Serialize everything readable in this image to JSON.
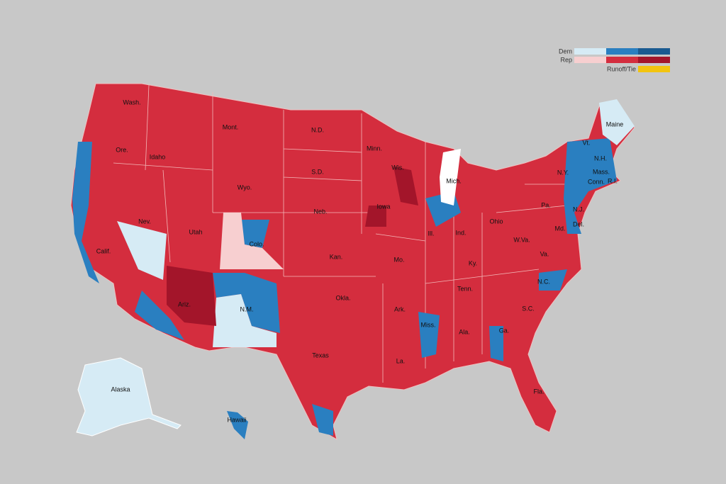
{
  "legend": {
    "rows": [
      "Dem",
      "Rep",
      "Runoff/Tie"
    ]
  },
  "states": [
    "Wash.",
    "Ore.",
    "Idaho",
    "Mont.",
    "N.D.",
    "S.D.",
    "Wyo.",
    "Neb.",
    "Nev.",
    "Utah",
    "Colo.",
    "Calif.",
    "Ariz.",
    "N.M.",
    "Kan.",
    "Okla.",
    "Texas",
    "Minn.",
    "Iowa",
    "Mo.",
    "Ark.",
    "La.",
    "Wis.",
    "Ill.",
    "Mich.",
    "Ind.",
    "Ohio",
    "Ky.",
    "Tenn.",
    "Miss.",
    "Ala.",
    "Ga.",
    "Fla.",
    "S.C.",
    "N.C.",
    "Va.",
    "W.Va.",
    "Pa.",
    "N.Y.",
    "Vt.",
    "N.H.",
    "Maine",
    "Mass.",
    "Conn.",
    "R.I.",
    "N.J.",
    "Del.",
    "Md.",
    "Alaska",
    "Hawaii"
  ]
}
